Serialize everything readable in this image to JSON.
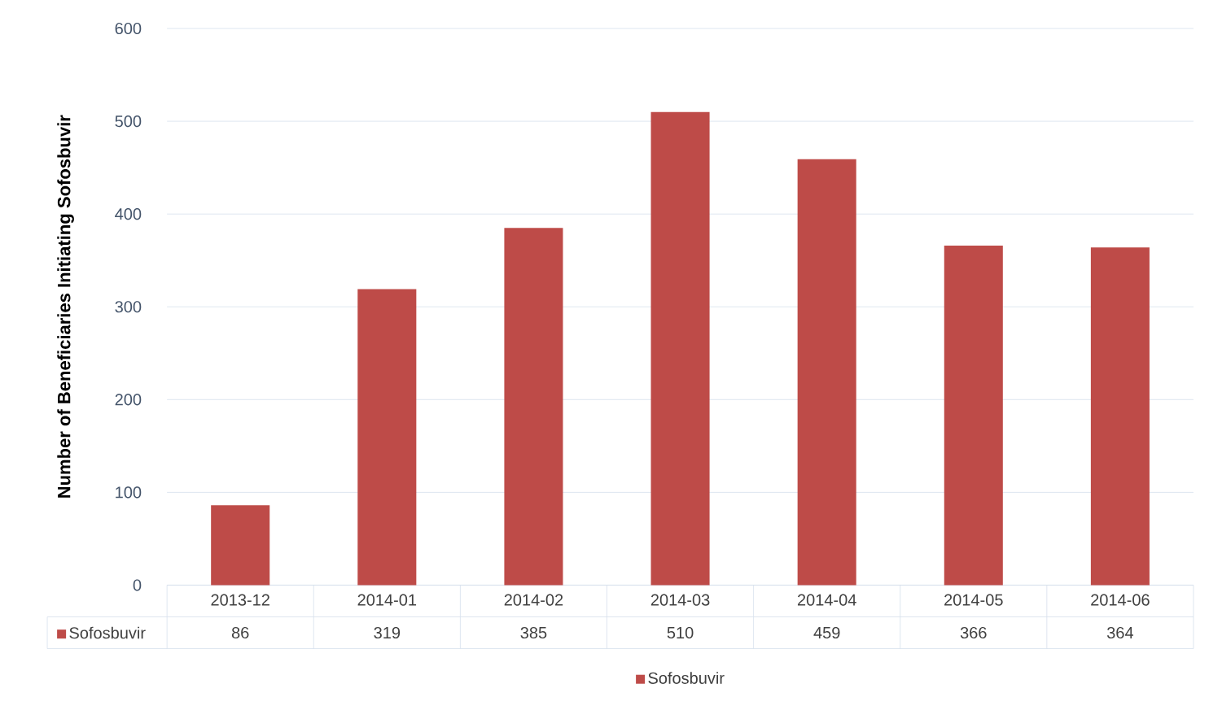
{
  "chart_data": {
    "type": "bar",
    "ylabel": "Number of Beneficiaries Initiating Sofosbuvir",
    "categories": [
      "2013-12",
      "2014-01",
      "2014-02",
      "2014-03",
      "2014-04",
      "2014-05",
      "2014-06"
    ],
    "series": [
      {
        "name": "Sofosbuvir",
        "color": "#be4b48",
        "values": [
          86,
          319,
          385,
          510,
          459,
          366,
          364
        ]
      }
    ],
    "ylim": [
      0,
      600
    ],
    "yticks": [
      0,
      100,
      200,
      300,
      400,
      500,
      600
    ],
    "grid": "y",
    "legend": "bottom",
    "data_labels": true
  }
}
